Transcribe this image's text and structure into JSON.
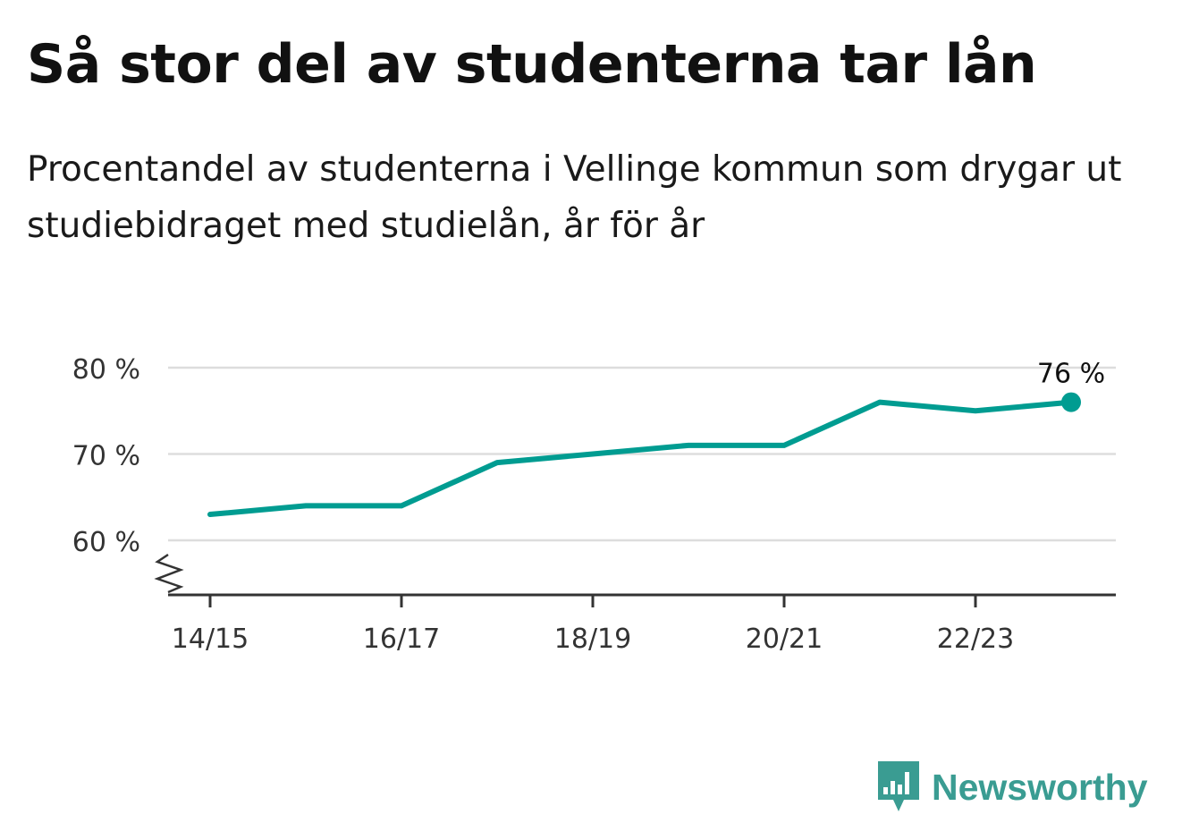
{
  "title": "Så stor del av studenterna tar lån",
  "subtitle": "Procentandel av studenterna i Vellinge kommun som drygar ut studiebidraget med studielån, år för år",
  "brand": {
    "name": "Newsworthy",
    "color": "#3a9c92",
    "icon": "newsworthy-logo-icon"
  },
  "colors": {
    "line": "#009c91",
    "grid": "#dddddd",
    "axis": "#333333",
    "text": "#333333"
  },
  "chart_data": {
    "type": "line",
    "x": [
      "14/15",
      "15/16",
      "16/17",
      "17/18",
      "18/19",
      "19/20",
      "20/21",
      "21/22",
      "22/23",
      "23/24"
    ],
    "xticks": [
      "14/15",
      "16/17",
      "18/19",
      "20/21",
      "22/23"
    ],
    "values": [
      63,
      64,
      64,
      69,
      70,
      71,
      71,
      76,
      75,
      76
    ],
    "yticks": [
      60,
      70,
      80
    ],
    "ytick_labels": [
      "60 %",
      "70 %",
      "80 %"
    ],
    "ylim": [
      54,
      80
    ],
    "y_axis_break": true,
    "end_label": "76 %",
    "grid": true,
    "xlabel": "",
    "ylabel": ""
  }
}
